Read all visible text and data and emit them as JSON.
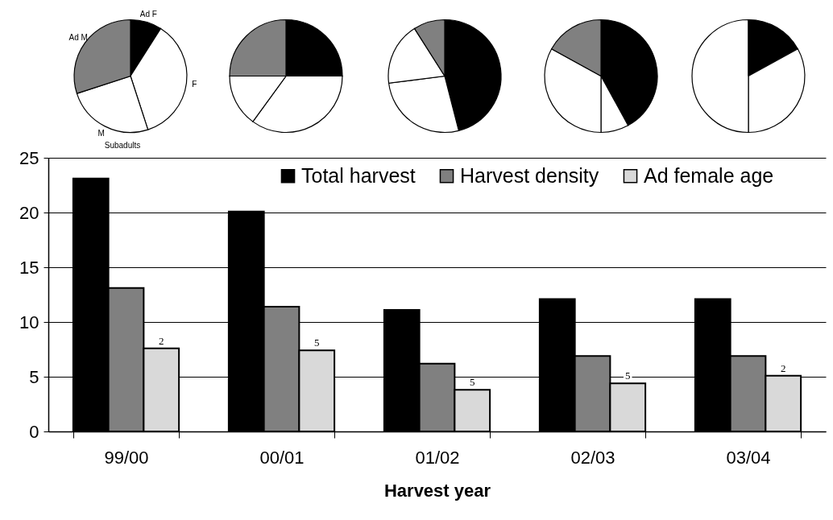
{
  "chart_data": [
    {
      "type": "pie",
      "categories": [
        "Ad F",
        "F",
        "M",
        "Ad M"
      ],
      "values": [
        9,
        36,
        25,
        30
      ],
      "colors": [
        "#000000",
        "#ffffff",
        "#ffffff",
        "#808080"
      ],
      "annotations": [
        "Subadults"
      ]
    },
    {
      "type": "pie",
      "categories": [
        null,
        null,
        null,
        null
      ],
      "values": [
        25,
        35,
        15,
        25
      ],
      "colors": [
        "#000000",
        "#ffffff",
        "#ffffff",
        "#808080"
      ]
    },
    {
      "type": "pie",
      "categories": [
        null,
        null,
        null,
        null
      ],
      "values": [
        46,
        27,
        18,
        9
      ],
      "colors": [
        "#000000",
        "#ffffff",
        "#ffffff",
        "#808080"
      ]
    },
    {
      "type": "pie",
      "categories": [
        null,
        null,
        null,
        null
      ],
      "values": [
        42,
        8,
        33,
        17
      ],
      "colors": [
        "#000000",
        "#ffffff",
        "#ffffff",
        "#808080"
      ]
    },
    {
      "type": "pie",
      "categories": [
        null,
        null,
        null,
        null
      ],
      "values": [
        17,
        33,
        50,
        0
      ],
      "colors": [
        "#000000",
        "#ffffff",
        "#ffffff",
        "#808080"
      ]
    },
    {
      "type": "bar",
      "xlabel": "Harvest year",
      "categories": [
        "99/00",
        "00/01",
        "01/02",
        "02/03",
        "03/04"
      ],
      "series": [
        {
          "name": "Total harvest",
          "color": "#000000",
          "values": [
            23.1,
            20.1,
            11.1,
            12.1,
            12.1
          ]
        },
        {
          "name": "Harvest density",
          "color": "#808080",
          "values": [
            13.1,
            11.4,
            6.2,
            6.9,
            6.9
          ]
        },
        {
          "name": "Ad female age",
          "color": "#d9d9d9",
          "values": [
            7.6,
            7.4,
            3.8,
            4.4,
            5.1
          ]
        }
      ],
      "annotations": [
        "2",
        "5",
        "5",
        "5",
        "2"
      ],
      "ylim": [
        0,
        25
      ],
      "yticks": [
        0,
        5,
        10,
        15,
        20,
        25
      ],
      "grid": "y",
      "legend": "top"
    }
  ]
}
